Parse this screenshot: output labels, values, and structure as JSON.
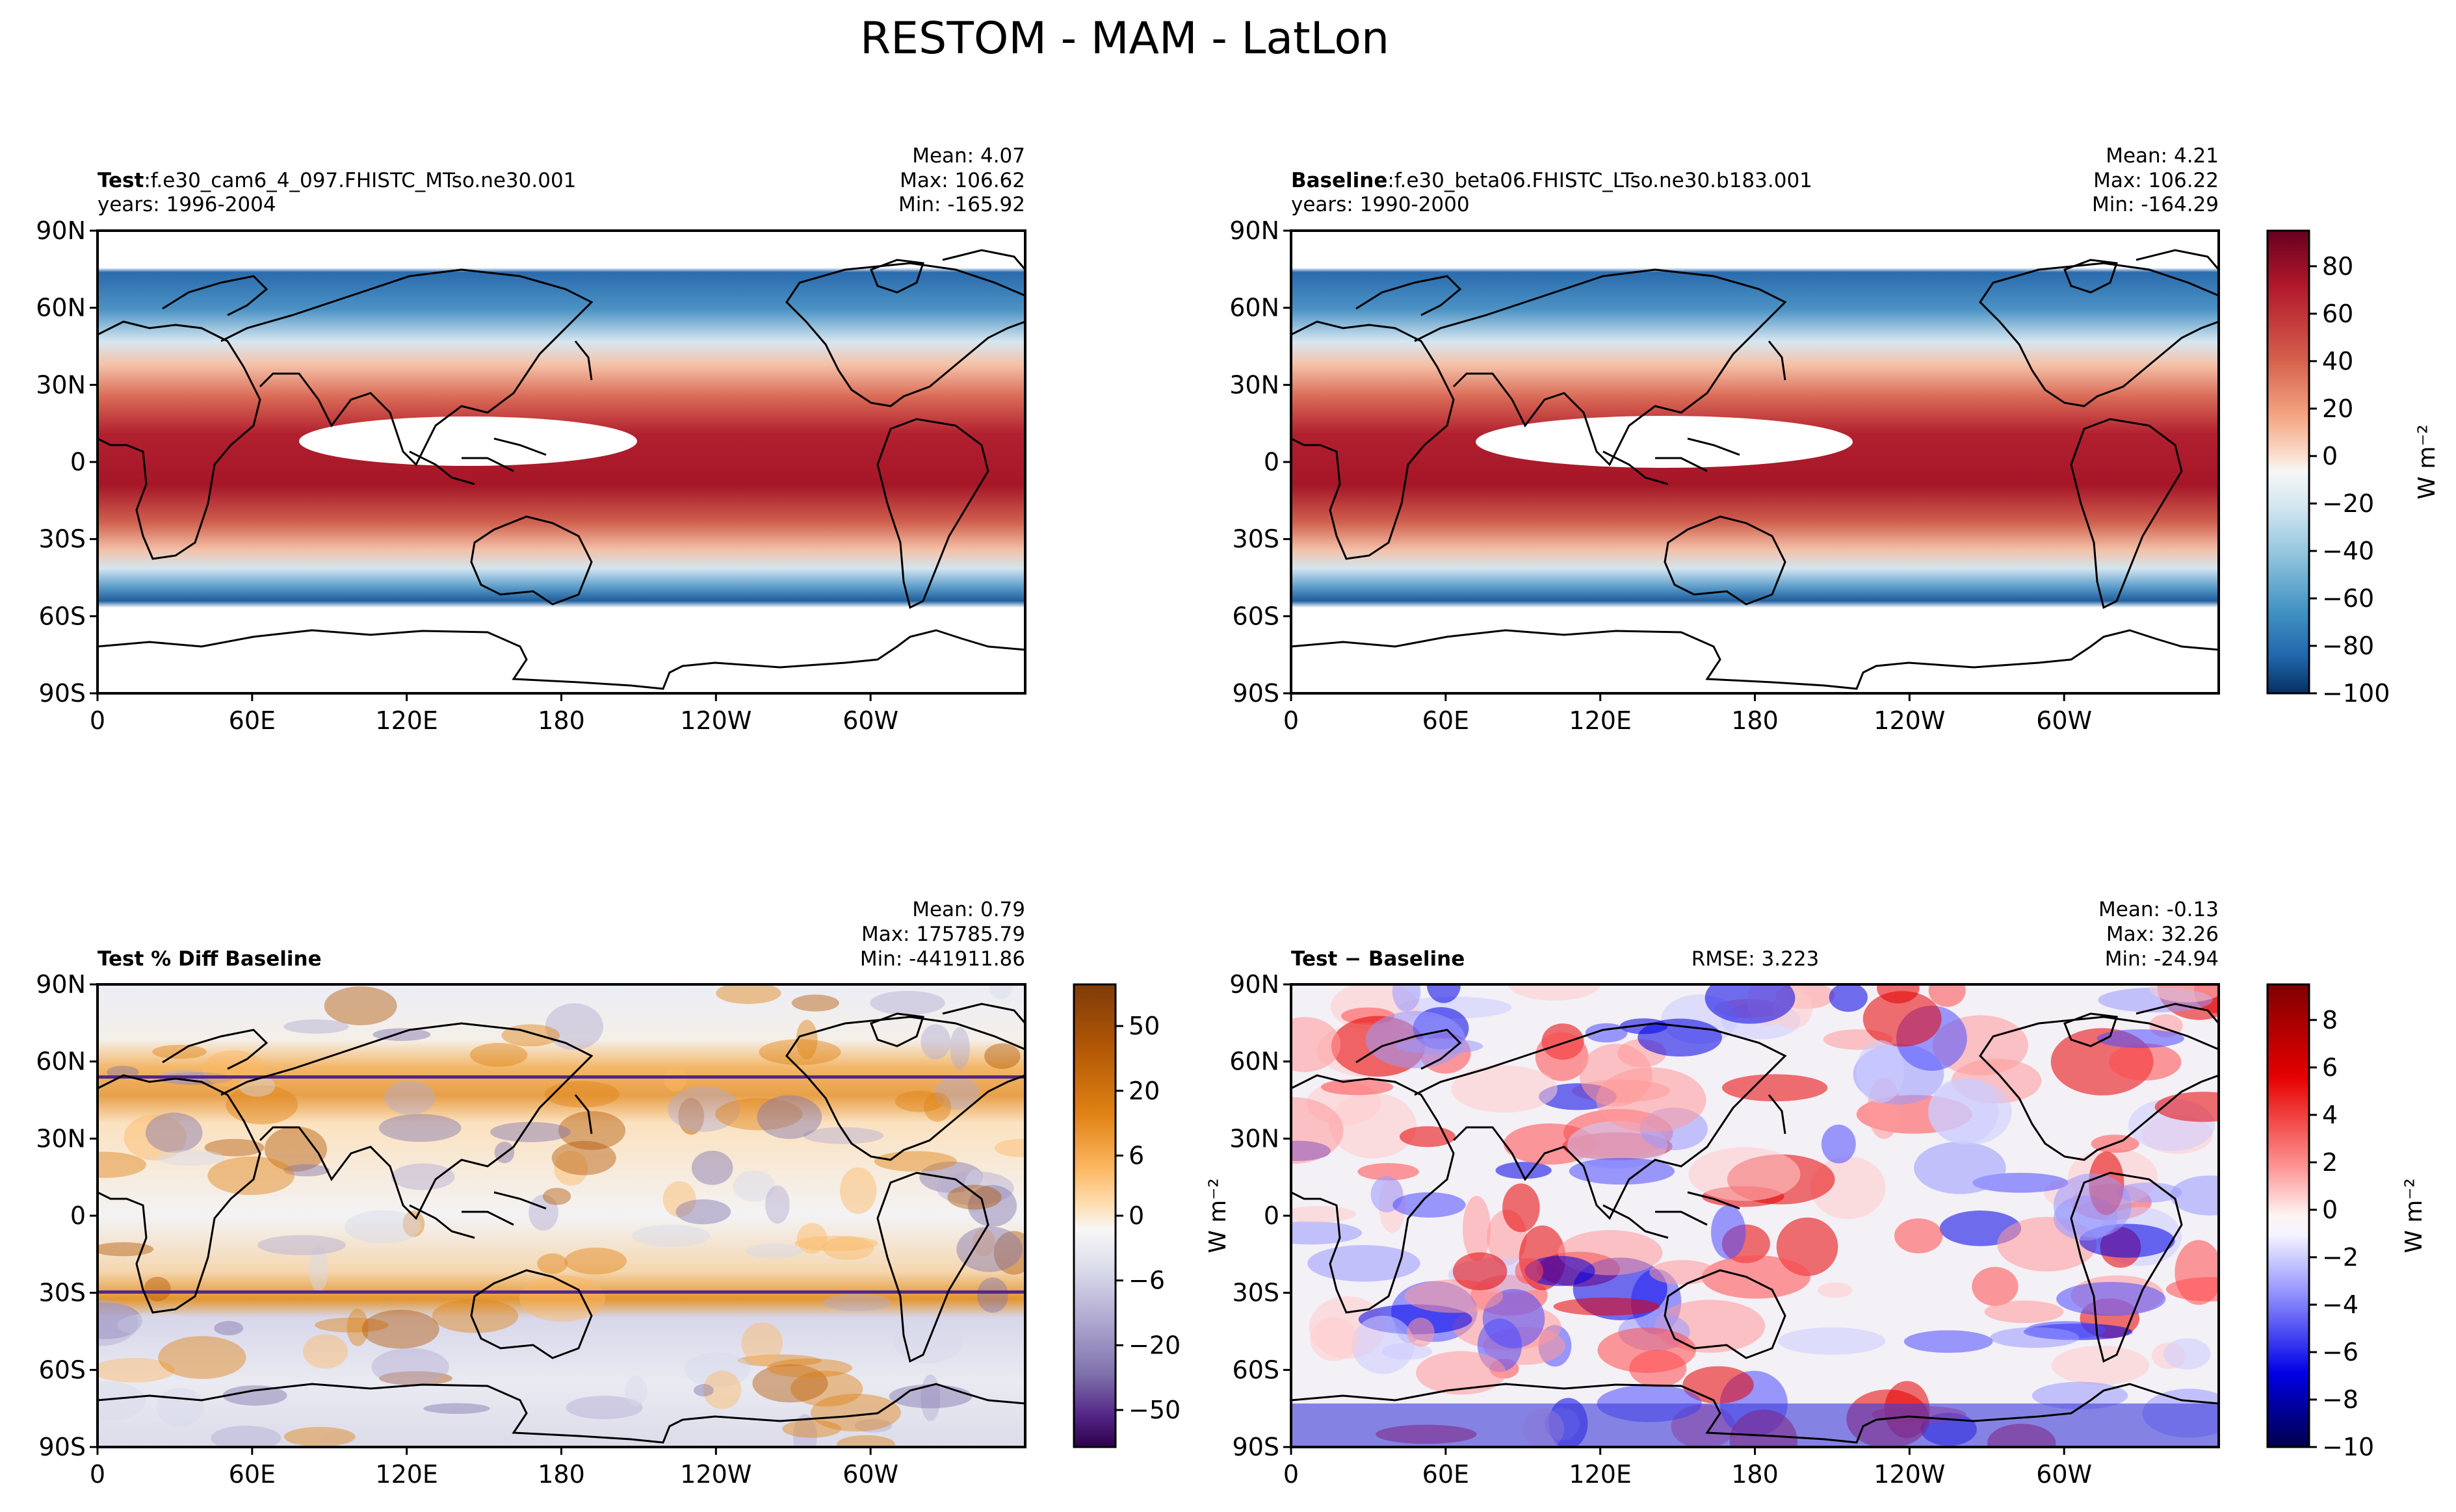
{
  "figure": {
    "title": "RESTOM - MAM - LatLon"
  },
  "axes_ticks": {
    "lat_labels": [
      "90N",
      "60N",
      "30N",
      "0",
      "30S",
      "60S",
      "90S"
    ],
    "lon_labels": [
      "0",
      "60E",
      "120E",
      "180",
      "120W",
      "60W"
    ]
  },
  "chart_data": [
    {
      "id": "test",
      "type": "heatmap",
      "title_bold": "Test",
      "title_rest": ":f.e30_cam6_4_097.FHISTC_MTso.ne30.001",
      "subtitle": "years: 1996-2004",
      "stats": [
        "Mean:  4.07",
        "Max: 106.62",
        "Min: -165.92"
      ],
      "mean": 4.07,
      "max": 106.62,
      "min": -165.92,
      "colormap": "RdBu_r",
      "lat_range": [
        -90,
        90
      ],
      "lon_range": [
        0,
        360
      ]
    },
    {
      "id": "baseline",
      "type": "heatmap",
      "title_bold": "Baseline",
      "title_rest": ":f.e30_beta06.FHISTC_LTso.ne30.b183.001",
      "subtitle": "years: 1990-2000",
      "stats": [
        "Mean:  4.21",
        "Max: 106.22",
        "Min: -164.29"
      ],
      "mean": 4.21,
      "max": 106.22,
      "min": -164.29,
      "colormap": "RdBu_r",
      "lat_range": [
        -90,
        90
      ],
      "lon_range": [
        0,
        360
      ],
      "colorbar": {
        "ticks": [
          "80",
          "60",
          "40",
          "20",
          "0",
          "−20",
          "−40",
          "−60",
          "−80",
          "−100"
        ],
        "range": [
          -100,
          95
        ],
        "label": "W m⁻²"
      }
    },
    {
      "id": "pctdiff",
      "type": "heatmap",
      "title_bold": "Test % Diff Baseline",
      "stats": [
        "Mean:  0.79",
        "Max: 175785.79",
        "Min: -441911.86"
      ],
      "mean": 0.79,
      "max": 175785.79,
      "min": -441911.86,
      "colormap": "PuOr_r",
      "lat_range": [
        -90,
        90
      ],
      "lon_range": [
        0,
        360
      ],
      "colorbar": {
        "ticks": [
          "50",
          "20",
          "6",
          "0",
          "−6",
          "−20",
          "−50"
        ],
        "range": "nonlinear",
        "label": "W m⁻²"
      }
    },
    {
      "id": "diff",
      "type": "heatmap",
      "title_bold": "Test − Baseline",
      "rmse": "RMSE: 3.223",
      "stats": [
        "Mean: -0.13",
        "Max: 32.26",
        "Min: -24.94"
      ],
      "mean": -0.13,
      "max": 32.26,
      "min": -24.94,
      "colormap": "seismic",
      "lat_range": [
        -90,
        90
      ],
      "lon_range": [
        0,
        360
      ],
      "colorbar": {
        "ticks": [
          "8",
          "6",
          "4",
          "2",
          "0",
          "−2",
          "−4",
          "−6",
          "−8",
          "−10"
        ],
        "range": [
          -10,
          9.5
        ],
        "label": "W m⁻²"
      }
    }
  ]
}
